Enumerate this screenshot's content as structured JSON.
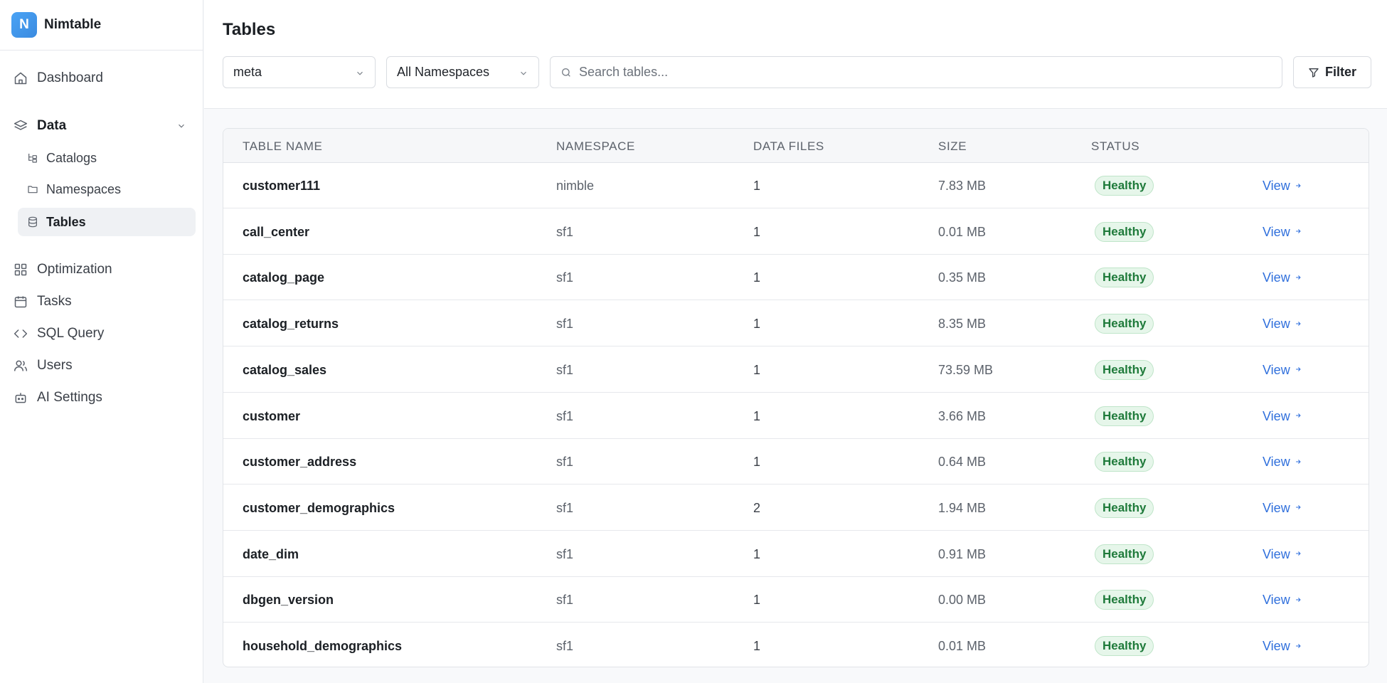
{
  "brand": {
    "logo_letter": "N",
    "name": "Nimtable"
  },
  "sidebar": {
    "dashboard": "Dashboard",
    "data": "Data",
    "catalogs": "Catalogs",
    "namespaces": "Namespaces",
    "tables": "Tables",
    "optimization": "Optimization",
    "tasks": "Tasks",
    "sql_query": "SQL Query",
    "users": "Users",
    "ai_settings": "AI Settings"
  },
  "page": {
    "title": "Tables"
  },
  "filters": {
    "catalog_value": "meta",
    "namespace_value": "All Namespaces",
    "search_placeholder": "Search tables...",
    "filter_label": "Filter"
  },
  "table": {
    "headers": {
      "name": "TABLE NAME",
      "namespace": "NAMESPACE",
      "data_files": "DATA FILES",
      "size": "SIZE",
      "status": "STATUS"
    },
    "view_label": "View",
    "rows": [
      {
        "name": "customer111",
        "namespace": "nimble",
        "data_files": "1",
        "size": "7.83 MB",
        "status": "Healthy"
      },
      {
        "name": "call_center",
        "namespace": "sf1",
        "data_files": "1",
        "size": "0.01 MB",
        "status": "Healthy"
      },
      {
        "name": "catalog_page",
        "namespace": "sf1",
        "data_files": "1",
        "size": "0.35 MB",
        "status": "Healthy"
      },
      {
        "name": "catalog_returns",
        "namespace": "sf1",
        "data_files": "1",
        "size": "8.35 MB",
        "status": "Healthy"
      },
      {
        "name": "catalog_sales",
        "namespace": "sf1",
        "data_files": "1",
        "size": "73.59 MB",
        "status": "Healthy"
      },
      {
        "name": "customer",
        "namespace": "sf1",
        "data_files": "1",
        "size": "3.66 MB",
        "status": "Healthy"
      },
      {
        "name": "customer_address",
        "namespace": "sf1",
        "data_files": "1",
        "size": "0.64 MB",
        "status": "Healthy"
      },
      {
        "name": "customer_demographics",
        "namespace": "sf1",
        "data_files": "2",
        "size": "1.94 MB",
        "status": "Healthy"
      },
      {
        "name": "date_dim",
        "namespace": "sf1",
        "data_files": "1",
        "size": "0.91 MB",
        "status": "Healthy"
      },
      {
        "name": "dbgen_version",
        "namespace": "sf1",
        "data_files": "1",
        "size": "0.00 MB",
        "status": "Healthy"
      },
      {
        "name": "household_demographics",
        "namespace": "sf1",
        "data_files": "1",
        "size": "0.01 MB",
        "status": "Healthy"
      }
    ]
  },
  "colors": {
    "accent": "#2f6fdc",
    "healthy_bg": "#e6f6ea",
    "healthy_text": "#1e7a3a",
    "logo": "#3b8be0"
  }
}
